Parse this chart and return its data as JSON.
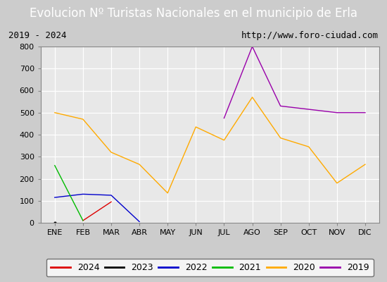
{
  "title": "Evolucion Nº Turistas Nacionales en el municipio de Erla",
  "subtitle_left": "2019 - 2024",
  "subtitle_right": "http://www.foro-ciudad.com",
  "months": [
    "ENE",
    "FEB",
    "MAR",
    "ABR",
    "MAY",
    "JUN",
    "JUL",
    "AGO",
    "SEP",
    "OCT",
    "NOV",
    "DIC"
  ],
  "ylim": [
    0,
    800
  ],
  "yticks": [
    0,
    100,
    200,
    300,
    400,
    500,
    600,
    700,
    800
  ],
  "series": {
    "2024": {
      "color": "#dd0000",
      "data": [
        null,
        10,
        95,
        null,
        null,
        null,
        null,
        null,
        null,
        null,
        null,
        null
      ]
    },
    "2023": {
      "color": "#000000",
      "data": [
        0,
        null,
        null,
        null,
        null,
        null,
        null,
        null,
        null,
        null,
        null,
        null
      ]
    },
    "2022": {
      "color": "#0000cc",
      "data": [
        115,
        130,
        125,
        5,
        null,
        null,
        null,
        null,
        null,
        null,
        null,
        null
      ]
    },
    "2021": {
      "color": "#00bb00",
      "data": [
        260,
        10,
        null,
        null,
        null,
        null,
        null,
        null,
        null,
        null,
        null,
        null
      ]
    },
    "2020": {
      "color": "#ffaa00",
      "data": [
        500,
        470,
        320,
        265,
        135,
        435,
        375,
        570,
        385,
        345,
        180,
        265
      ]
    },
    "2019": {
      "color": "#9900aa",
      "data": [
        null,
        null,
        null,
        null,
        null,
        null,
        475,
        800,
        530,
        515,
        500,
        500
      ]
    }
  },
  "title_bg_color": "#4472c4",
  "title_fg_color": "#ffffff",
  "plot_bg_color": "#e8e8e8",
  "grid_color": "#ffffff",
  "border_color": "#888888",
  "subtitle_bg_color": "#ffffff",
  "title_fontsize": 12,
  "axis_fontsize": 8,
  "subtitle_fontsize": 9,
  "legend_order": [
    "2024",
    "2023",
    "2022",
    "2021",
    "2020",
    "2019"
  ]
}
